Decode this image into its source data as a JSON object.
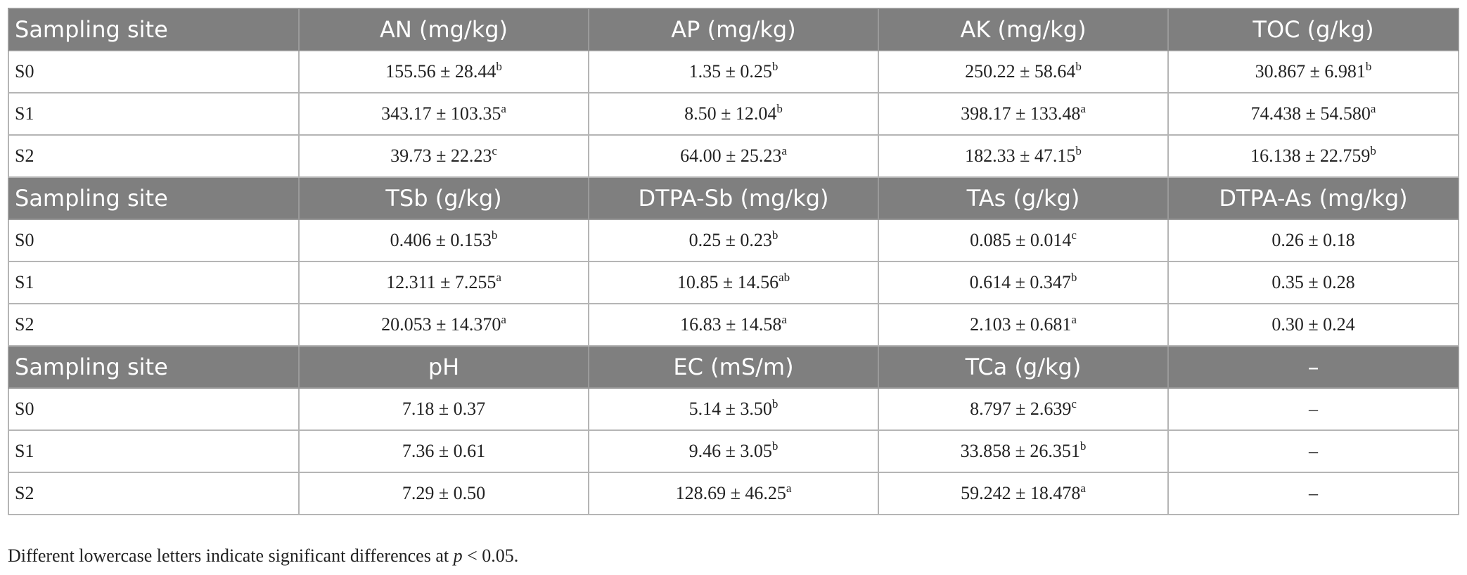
{
  "sections": [
    {
      "header": [
        "Sampling site",
        "AN (mg/kg)",
        "AP (mg/kg)",
        "AK (mg/kg)",
        "TOC (g/kg)"
      ],
      "rows": [
        [
          "S0",
          {
            "value": "155.56 ± 28.44",
            "sup": "b"
          },
          {
            "value": "1.35 ± 0.25",
            "sup": "b"
          },
          {
            "value": "250.22 ± 58.64",
            "sup": "b"
          },
          {
            "value": "30.867 ± 6.981",
            "sup": "b"
          }
        ],
        [
          "S1",
          {
            "value": "343.17 ± 103.35",
            "sup": "a"
          },
          {
            "value": "8.50 ± 12.04",
            "sup": "b"
          },
          {
            "value": "398.17 ± 133.48",
            "sup": "a"
          },
          {
            "value": "74.438 ± 54.580",
            "sup": "a"
          }
        ],
        [
          "S2",
          {
            "value": "39.73 ± 22.23",
            "sup": "c"
          },
          {
            "value": "64.00 ± 25.23",
            "sup": "a"
          },
          {
            "value": "182.33 ± 47.15",
            "sup": "b"
          },
          {
            "value": "16.138 ± 22.759",
            "sup": "b"
          }
        ]
      ]
    },
    {
      "header": [
        "Sampling site",
        "TSb (g/kg)",
        "DTPA-Sb (mg/kg)",
        "TAs (g/kg)",
        "DTPA-As (mg/kg)"
      ],
      "rows": [
        [
          "S0",
          {
            "value": "0.406 ± 0.153",
            "sup": "b"
          },
          {
            "value": "0.25 ± 0.23",
            "sup": "b"
          },
          {
            "value": "0.085 ± 0.014",
            "sup": "c"
          },
          "0.26 ± 0.18"
        ],
        [
          "S1",
          {
            "value": "12.311 ± 7.255",
            "sup": "a"
          },
          {
            "value": "10.85 ± 14.56",
            "sup": "ab"
          },
          {
            "value": "0.614 ± 0.347",
            "sup": "b"
          },
          "0.35 ± 0.28"
        ],
        [
          "S2",
          {
            "value": "20.053 ± 14.370",
            "sup": "a"
          },
          {
            "value": "16.83 ± 14.58",
            "sup": "a"
          },
          {
            "value": "2.103 ± 0.681",
            "sup": "a"
          },
          "0.30 ± 0.24"
        ]
      ]
    },
    {
      "header": [
        "Sampling site",
        "pH",
        "EC (mS/m)",
        "TCa (g/kg)",
        "–"
      ],
      "rows": [
        [
          "S0",
          "7.18 ± 0.37",
          {
            "value": "5.14 ± 3.50",
            "sup": "b"
          },
          {
            "value": "8.797 ± 2.639",
            "sup": "c"
          },
          "–"
        ],
        [
          "S1",
          "7.36 ± 0.61",
          {
            "value": "9.46 ± 3.05",
            "sup": "b"
          },
          {
            "value": "33.858 ± 26.351",
            "sup": "b"
          },
          "–"
        ],
        [
          "S2",
          "7.29 ± 0.50",
          {
            "value": "128.69 ± 46.25",
            "sup": "a"
          },
          {
            "value": "59.242 ± 18.478",
            "sup": "a"
          },
          "–"
        ]
      ]
    }
  ],
  "footnote": {
    "before": "Different lowercase letters indicate significant differences at ",
    "italic": "p",
    "after": " < 0.05."
  }
}
